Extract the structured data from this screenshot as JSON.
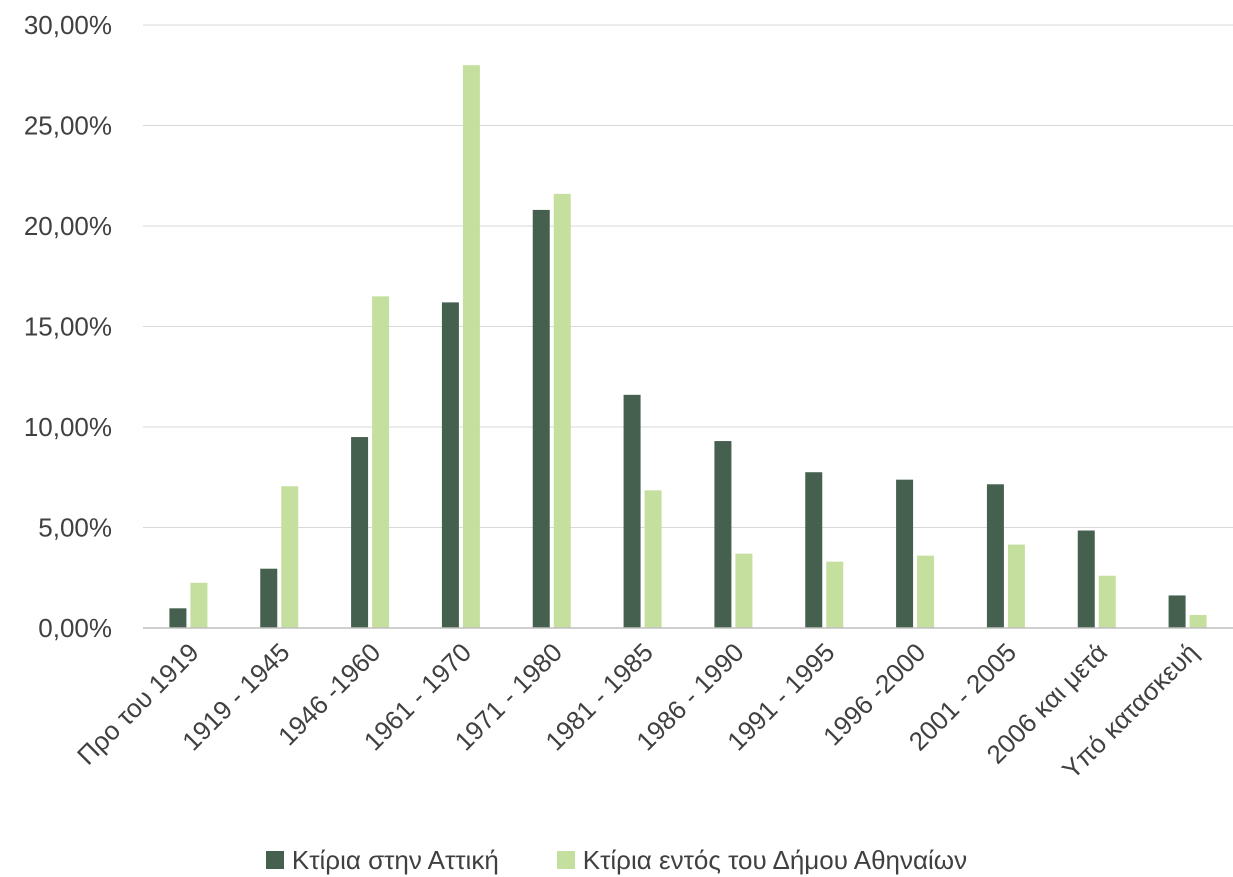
{
  "chart_data": {
    "type": "bar",
    "categories": [
      "Προ του 1919",
      "1919 - 1945",
      "1946 -1960",
      "1961 - 1970",
      "1971 - 1980",
      "1981 - 1985",
      "1986 - 1990",
      "1991 - 1995",
      "1996 -2000",
      "2001 - 2005",
      "2006 και μετά",
      "Υπό κατασκευή"
    ],
    "series": [
      {
        "name": "Κτίρια στην Αττική",
        "color": "#46604f",
        "values": [
          0.98,
          2.95,
          9.5,
          16.2,
          20.8,
          11.6,
          9.3,
          7.75,
          7.38,
          7.15,
          4.85,
          1.62
        ]
      },
      {
        "name": "Κτίρια εντός του Δήμου Αθηναίων",
        "color": "#c5df9f",
        "values": [
          2.25,
          7.05,
          16.5,
          28.0,
          21.6,
          6.85,
          3.7,
          3.3,
          3.6,
          4.15,
          2.6,
          0.65
        ]
      }
    ],
    "yticks": [
      "0,00%",
      "5,00%",
      "10,00%",
      "15,00%",
      "20,00%",
      "25,00%",
      "30,00%"
    ],
    "ylim": [
      0,
      30
    ],
    "grid": true,
    "gridline_color": "#d9d9d9",
    "legend_position": "bottom",
    "title": "",
    "xlabel": "",
    "ylabel": ""
  }
}
